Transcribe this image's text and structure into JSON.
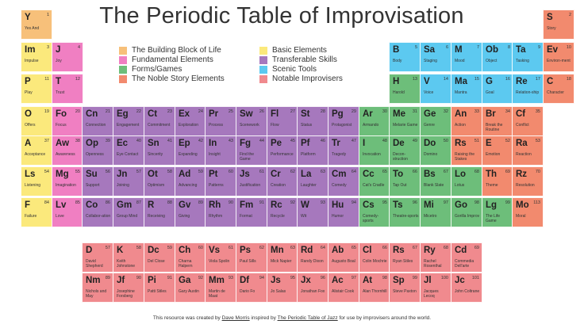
{
  "title": "The Periodic Table of Improvisation",
  "colors": {
    "yellow": "#fbe97c",
    "pink": "#f07fc2",
    "purple": "#a678bd",
    "blue": "#5cc9f0",
    "green": "#6dbe7a",
    "salmon": "#f28a6e",
    "red": "#f08a8e",
    "orange": "#f7c07a"
  },
  "legend": [
    {
      "label": "The Building Block of Life",
      "color": "orange"
    },
    {
      "label": "Fundamental Elements",
      "color": "pink"
    },
    {
      "label": "Forms/Games",
      "color": "green"
    },
    {
      "label": "The Noble Story Elements",
      "color": "salmon"
    },
    {
      "label": "Basic Elements",
      "color": "yellow"
    },
    {
      "label": "Transferable Skills",
      "color": "purple"
    },
    {
      "label": "Scenic Tools",
      "color": "blue"
    },
    {
      "label": "Notable Improvisers",
      "color": "red"
    }
  ],
  "elements": [
    {
      "sym": "Y",
      "num": "1",
      "name": "Yes And",
      "color": "orange",
      "col": 0,
      "row": 0
    },
    {
      "sym": "S",
      "num": "2",
      "name": "Story",
      "color": "salmon",
      "col": 17,
      "row": 0
    },
    {
      "sym": "Im",
      "num": "3",
      "name": "Impulse",
      "color": "yellow",
      "col": 0,
      "row": 1
    },
    {
      "sym": "J",
      "num": "4",
      "name": "Joy",
      "color": "pink",
      "col": 1,
      "row": 1
    },
    {
      "sym": "B",
      "num": "5",
      "name": "Body",
      "color": "blue",
      "col": 12,
      "row": 1
    },
    {
      "sym": "Sa",
      "num": "6",
      "name": "Staging",
      "color": "blue",
      "col": 13,
      "row": 1
    },
    {
      "sym": "M",
      "num": "7",
      "name": "Mood",
      "color": "blue",
      "col": 14,
      "row": 1
    },
    {
      "sym": "Ob",
      "num": "8",
      "name": "Object",
      "color": "blue",
      "col": 15,
      "row": 1
    },
    {
      "sym": "Ta",
      "num": "9",
      "name": "Tasking",
      "color": "blue",
      "col": 16,
      "row": 1
    },
    {
      "sym": "Ev",
      "num": "10",
      "name": "Environ-ment",
      "color": "salmon",
      "col": 17,
      "row": 1
    },
    {
      "sym": "P",
      "num": "11",
      "name": "Play",
      "color": "yellow",
      "col": 0,
      "row": 2
    },
    {
      "sym": "T",
      "num": "12",
      "name": "Trust",
      "color": "pink",
      "col": 1,
      "row": 2
    },
    {
      "sym": "H",
      "num": "13",
      "name": "Harold",
      "color": "green",
      "col": 12,
      "row": 2
    },
    {
      "sym": "V",
      "num": "14",
      "name": "Voice",
      "color": "blue",
      "col": 13,
      "row": 2
    },
    {
      "sym": "Ma",
      "num": "15",
      "name": "Mantra",
      "color": "blue",
      "col": 14,
      "row": 2
    },
    {
      "sym": "G",
      "num": "16",
      "name": "Goal",
      "color": "blue",
      "col": 15,
      "row": 2
    },
    {
      "sym": "Re",
      "num": "17",
      "name": "Relation-ship",
      "color": "blue",
      "col": 16,
      "row": 2
    },
    {
      "sym": "C",
      "num": "18",
      "name": "Character",
      "color": "salmon",
      "col": 17,
      "row": 2
    },
    {
      "sym": "O",
      "num": "19",
      "name": "Offers",
      "color": "yellow",
      "col": 0,
      "row": 3
    },
    {
      "sym": "Fo",
      "num": "20",
      "name": "Focus",
      "color": "pink",
      "col": 1,
      "row": 3
    },
    {
      "sym": "Cn",
      "num": "21",
      "name": "Connection",
      "color": "purple",
      "col": 2,
      "row": 3
    },
    {
      "sym": "Eg",
      "num": "22",
      "name": "Engagement",
      "color": "purple",
      "col": 3,
      "row": 3
    },
    {
      "sym": "Ct",
      "num": "23",
      "name": "Commitment",
      "color": "purple",
      "col": 4,
      "row": 3
    },
    {
      "sym": "Ex",
      "num": "24",
      "name": "Exploration",
      "color": "purple",
      "col": 5,
      "row": 3
    },
    {
      "sym": "Pr",
      "num": "25",
      "name": "Process",
      "color": "purple",
      "col": 6,
      "row": 3
    },
    {
      "sym": "Sw",
      "num": "26",
      "name": "Scenework",
      "color": "purple",
      "col": 7,
      "row": 3
    },
    {
      "sym": "Fl",
      "num": "27",
      "name": "Flow",
      "color": "purple",
      "col": 8,
      "row": 3
    },
    {
      "sym": "St",
      "num": "28",
      "name": "Status",
      "color": "purple",
      "col": 9,
      "row": 3
    },
    {
      "sym": "Pg",
      "num": "29",
      "name": "Protagonist",
      "color": "purple",
      "col": 10,
      "row": 3
    },
    {
      "sym": "Ar",
      "num": "30",
      "name": "Armando",
      "color": "green",
      "col": 11,
      "row": 3
    },
    {
      "sym": "Me",
      "num": "31",
      "name": "Melarie Game",
      "color": "green",
      "col": 12,
      "row": 3
    },
    {
      "sym": "Ge",
      "num": "32",
      "name": "Genre",
      "color": "green",
      "col": 13,
      "row": 3
    },
    {
      "sym": "An",
      "num": "33",
      "name": "Action",
      "color": "salmon",
      "col": 14,
      "row": 3
    },
    {
      "sym": "Br",
      "num": "34",
      "name": "Break the Routine",
      "color": "salmon",
      "col": 15,
      "row": 3
    },
    {
      "sym": "Cf",
      "num": "35",
      "name": "Conflict",
      "color": "salmon",
      "col": 16,
      "row": 3
    },
    {
      "sym": "A",
      "num": "37",
      "name": "Acceptance",
      "color": "yellow",
      "col": 0,
      "row": 4
    },
    {
      "sym": "Aw",
      "num": "38",
      "name": "Awareness",
      "color": "pink",
      "col": 1,
      "row": 4
    },
    {
      "sym": "Op",
      "num": "39",
      "name": "Openness",
      "color": "purple",
      "col": 2,
      "row": 4
    },
    {
      "sym": "Ec",
      "num": "40",
      "name": "Eye Contact",
      "color": "purple",
      "col": 3,
      "row": 4
    },
    {
      "sym": "Sn",
      "num": "41",
      "name": "Sincerity",
      "color": "purple",
      "col": 4,
      "row": 4
    },
    {
      "sym": "Ep",
      "num": "42",
      "name": "Expanding",
      "color": "purple",
      "col": 5,
      "row": 4
    },
    {
      "sym": "In",
      "num": "43",
      "name": "Insight",
      "color": "purple",
      "col": 6,
      "row": 4
    },
    {
      "sym": "Fg",
      "num": "44",
      "name": "Find the Game",
      "color": "purple",
      "col": 7,
      "row": 4
    },
    {
      "sym": "Pe",
      "num": "45",
      "name": "Performance",
      "color": "purple",
      "col": 8,
      "row": 4
    },
    {
      "sym": "Pf",
      "num": "46",
      "name": "Platform",
      "color": "purple",
      "col": 9,
      "row": 4
    },
    {
      "sym": "Tr",
      "num": "47",
      "name": "Tragedy",
      "color": "purple",
      "col": 10,
      "row": 4
    },
    {
      "sym": "I",
      "num": "48",
      "name": "Invocation",
      "color": "green",
      "col": 11,
      "row": 4
    },
    {
      "sym": "De",
      "num": "49",
      "name": "Decon-struction",
      "color": "green",
      "col": 12,
      "row": 4
    },
    {
      "sym": "Do",
      "num": "50",
      "name": "Domino",
      "color": "green",
      "col": 13,
      "row": 4
    },
    {
      "sym": "Rs",
      "num": "51",
      "name": "Raising the Stakes",
      "color": "salmon",
      "col": 14,
      "row": 4
    },
    {
      "sym": "E",
      "num": "52",
      "name": "Emotion",
      "color": "salmon",
      "col": 15,
      "row": 4
    },
    {
      "sym": "Ra",
      "num": "53",
      "name": "Reaction",
      "color": "salmon",
      "col": 16,
      "row": 4
    },
    {
      "sym": "Ls",
      "num": "54",
      "name": "Listening",
      "color": "yellow",
      "col": 0,
      "row": 5
    },
    {
      "sym": "Mg",
      "num": "55",
      "name": "Imagination",
      "color": "pink",
      "col": 1,
      "row": 5
    },
    {
      "sym": "Su",
      "num": "56",
      "name": "Support",
      "color": "purple",
      "col": 2,
      "row": 5
    },
    {
      "sym": "Jn",
      "num": "57",
      "name": "Joining",
      "color": "purple",
      "col": 3,
      "row": 5
    },
    {
      "sym": "Ot",
      "num": "58",
      "name": "Optimism",
      "color": "purple",
      "col": 4,
      "row": 5
    },
    {
      "sym": "Ad",
      "num": "59",
      "name": "Advancing",
      "color": "purple",
      "col": 5,
      "row": 5
    },
    {
      "sym": "Pt",
      "num": "60",
      "name": "Patterns",
      "color": "purple",
      "col": 6,
      "row": 5
    },
    {
      "sym": "Js",
      "num": "61",
      "name": "Justification",
      "color": "purple",
      "col": 7,
      "row": 5
    },
    {
      "sym": "Cr",
      "num": "62",
      "name": "Creation",
      "color": "purple",
      "col": 8,
      "row": 5
    },
    {
      "sym": "La",
      "num": "63",
      "name": "Laughter",
      "color": "purple",
      "col": 9,
      "row": 5
    },
    {
      "sym": "Cm",
      "num": "64",
      "name": "Comedy",
      "color": "purple",
      "col": 10,
      "row": 5
    },
    {
      "sym": "Cc",
      "num": "65",
      "name": "Cat's Cradle",
      "color": "green",
      "col": 11,
      "row": 5
    },
    {
      "sym": "To",
      "num": "66",
      "name": "Tap Out",
      "color": "green",
      "col": 12,
      "row": 5
    },
    {
      "sym": "Bs",
      "num": "67",
      "name": "Blank Slate",
      "color": "green",
      "col": 13,
      "row": 5
    },
    {
      "sym": "Lo",
      "num": "68",
      "name": "Lotus",
      "color": "green",
      "col": 14,
      "row": 5
    },
    {
      "sym": "Th",
      "num": "69",
      "name": "Theme",
      "color": "salmon",
      "col": 15,
      "row": 5
    },
    {
      "sym": "Rz",
      "num": "70",
      "name": "Resolution",
      "color": "salmon",
      "col": 16,
      "row": 5
    },
    {
      "sym": "F",
      "num": "84",
      "name": "Failure",
      "color": "yellow",
      "col": 0,
      "row": 6
    },
    {
      "sym": "Lv",
      "num": "85",
      "name": "Love",
      "color": "pink",
      "col": 1,
      "row": 6
    },
    {
      "sym": "Co",
      "num": "86",
      "name": "Collabor-ation",
      "color": "purple",
      "col": 2,
      "row": 6
    },
    {
      "sym": "Gm",
      "num": "87",
      "name": "Group Mind",
      "color": "purple",
      "col": 3,
      "row": 6
    },
    {
      "sym": "R",
      "num": "88",
      "name": "Receiving",
      "color": "purple",
      "col": 4,
      "row": 6
    },
    {
      "sym": "Gv",
      "num": "89",
      "name": "Giving",
      "color": "purple",
      "col": 5,
      "row": 6
    },
    {
      "sym": "Rh",
      "num": "90",
      "name": "Rhythm",
      "color": "purple",
      "col": 6,
      "row": 6
    },
    {
      "sym": "Fm",
      "num": "91",
      "name": "Format",
      "color": "purple",
      "col": 7,
      "row": 6
    },
    {
      "sym": "Rc",
      "num": "92",
      "name": "Recycle",
      "color": "purple",
      "col": 8,
      "row": 6
    },
    {
      "sym": "W",
      "num": "93",
      "name": "Wit",
      "color": "purple",
      "col": 9,
      "row": 6
    },
    {
      "sym": "Hu",
      "num": "94",
      "name": "Humor",
      "color": "purple",
      "col": 10,
      "row": 6
    },
    {
      "sym": "Cs",
      "num": "95",
      "name": "Comedy-sports",
      "color": "green",
      "col": 11,
      "row": 6
    },
    {
      "sym": "Ts",
      "num": "96",
      "name": "Theatre-sports",
      "color": "green",
      "col": 12,
      "row": 6
    },
    {
      "sym": "Mi",
      "num": "97",
      "name": "Micetro",
      "color": "green",
      "col": 13,
      "row": 6
    },
    {
      "sym": "Go",
      "num": "98",
      "name": "Gorilla Improv",
      "color": "green",
      "col": 14,
      "row": 6
    },
    {
      "sym": "Lg",
      "num": "99",
      "name": "The Life Game",
      "color": "green",
      "col": 15,
      "row": 6
    },
    {
      "sym": "Mo",
      "num": "113",
      "name": "Moral",
      "color": "salmon",
      "col": 16,
      "row": 6
    },
    {
      "sym": "D",
      "num": "57",
      "name": "David Shepherd",
      "color": "red",
      "col": 2,
      "row": 8
    },
    {
      "sym": "K",
      "num": "58",
      "name": "Keith Johnstone",
      "color": "red",
      "col": 3,
      "row": 8
    },
    {
      "sym": "Dc",
      "num": "59",
      "name": "Del Close",
      "color": "red",
      "col": 4,
      "row": 8
    },
    {
      "sym": "Ch",
      "num": "60",
      "name": "Charna Halpern",
      "color": "red",
      "col": 5,
      "row": 8
    },
    {
      "sym": "Vs",
      "num": "61",
      "name": "Viola Spolin",
      "color": "red",
      "col": 6,
      "row": 8
    },
    {
      "sym": "Ps",
      "num": "62",
      "name": "Paul Sills",
      "color": "red",
      "col": 7,
      "row": 8
    },
    {
      "sym": "Mn",
      "num": "63",
      "name": "Mick Napier",
      "color": "red",
      "col": 8,
      "row": 8
    },
    {
      "sym": "Rd",
      "num": "64",
      "name": "Randy Dixon",
      "color": "red",
      "col": 9,
      "row": 8
    },
    {
      "sym": "Ab",
      "num": "65",
      "name": "Augusto Boal",
      "color": "red",
      "col": 10,
      "row": 8
    },
    {
      "sym": "Cl",
      "num": "66",
      "name": "Colin Mochrie",
      "color": "red",
      "col": 11,
      "row": 8
    },
    {
      "sym": "Rs",
      "num": "67",
      "name": "Ryan Stiles",
      "color": "red",
      "col": 12,
      "row": 8
    },
    {
      "sym": "Ry",
      "num": "68",
      "name": "Rachel Rosenthal",
      "color": "red",
      "col": 13,
      "row": 8
    },
    {
      "sym": "Cd",
      "num": "69",
      "name": "Commedia Dell'arte",
      "color": "red",
      "col": 14,
      "row": 8
    },
    {
      "sym": "Nm",
      "num": "89",
      "name": "Nichols and May",
      "color": "red",
      "col": 2,
      "row": 9
    },
    {
      "sym": "Jf",
      "num": "90",
      "name": "Josephine Forsberg",
      "color": "red",
      "col": 3,
      "row": 9
    },
    {
      "sym": "Pi",
      "num": "91",
      "name": "Patti Stiles",
      "color": "red",
      "col": 4,
      "row": 9
    },
    {
      "sym": "Ga",
      "num": "92",
      "name": "Gary Austin",
      "color": "red",
      "col": 5,
      "row": 9
    },
    {
      "sym": "Mm",
      "num": "93",
      "name": "Martin de Maat",
      "color": "red",
      "col": 6,
      "row": 9
    },
    {
      "sym": "Df",
      "num": "94",
      "name": "Dario Fo",
      "color": "red",
      "col": 7,
      "row": 9
    },
    {
      "sym": "Js",
      "num": "95",
      "name": "Jo Salas",
      "color": "red",
      "col": 8,
      "row": 9
    },
    {
      "sym": "Jx",
      "num": "96",
      "name": "Jonathan Fox",
      "color": "red",
      "col": 9,
      "row": 9
    },
    {
      "sym": "Ac",
      "num": "97",
      "name": "Alistair Cook",
      "color": "red",
      "col": 10,
      "row": 9
    },
    {
      "sym": "At",
      "num": "98",
      "name": "Alan Thornhill",
      "color": "red",
      "col": 11,
      "row": 9
    },
    {
      "sym": "Sp",
      "num": "99",
      "name": "Steve Paxton",
      "color": "red",
      "col": 12,
      "row": 9
    },
    {
      "sym": "Jl",
      "num": "100",
      "name": "Jacques Lecoq",
      "color": "red",
      "col": 13,
      "row": 9
    },
    {
      "sym": "Jc",
      "num": "101",
      "name": "John Coltrane",
      "color": "red",
      "col": 14,
      "row": 9
    }
  ],
  "footer": {
    "prefix": "This resource was created by ",
    "author": "Dave Morris",
    "middle": " inspired by ",
    "source": "The Periodic Table of Jazz",
    "suffix": " for use by improvisers around the world."
  }
}
